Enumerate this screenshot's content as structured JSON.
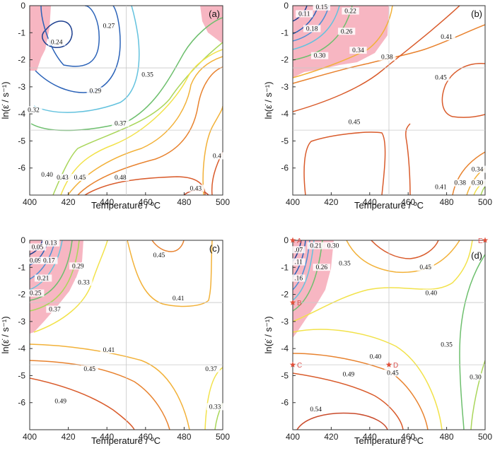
{
  "colors": {
    "instability": "#f7b6c2",
    "gridline": "#c8c8c8",
    "marker": "#e0503a",
    "levels": [
      "#1d3f8f",
      "#2a62b8",
      "#4a90d6",
      "#63c2de",
      "#6dbf6d",
      "#a9d65a",
      "#f2e24a",
      "#f2b138",
      "#e8822e",
      "#d95b2b",
      "#c94a2a"
    ]
  },
  "chart_data": [
    {
      "panel": "(a)",
      "type": "contour",
      "xlabel": "Temperature / ºC",
      "ylabel": "ln(ε̇ / s⁻¹)",
      "xlim": [
        400,
        500
      ],
      "ylim": [
        -7,
        0
      ],
      "x_ticks": [
        "400",
        "420",
        "440",
        "460",
        "480",
        "500"
      ],
      "y_ticks": [
        "0",
        "-1",
        "-2",
        "-3",
        "-4",
        "-5",
        "-6"
      ],
      "contour_labels": [
        {
          "text": "0.24",
          "x": 414,
          "y": -1.4
        },
        {
          "text": "0.27",
          "x": 441,
          "y": -0.8
        },
        {
          "text": "0.29",
          "x": 434,
          "y": -3.2
        },
        {
          "text": "0.32",
          "x": 402,
          "y": -3.9
        },
        {
          "text": "0.35",
          "x": 461,
          "y": -2.6
        },
        {
          "text": "0.37",
          "x": 447,
          "y": -4.4
        },
        {
          "text": "0.40",
          "x": 409,
          "y": -6.3
        },
        {
          "text": "0.43",
          "x": 417,
          "y": -6.4
        },
        {
          "text": "0.45",
          "x": 426,
          "y": -6.4
        },
        {
          "text": "0.48",
          "x": 447,
          "y": -6.4
        },
        {
          "text": "0.4",
          "x": 497,
          "y": -5.6
        },
        {
          "text": "0.43",
          "x": 486,
          "y": -6.8
        }
      ],
      "markers": []
    },
    {
      "panel": "(b)",
      "type": "contour",
      "xlabel": "Temperature / ºC",
      "ylabel": "ln(ε̇ / s⁻¹)",
      "xlim": [
        400,
        500
      ],
      "ylim": [
        -7,
        0
      ],
      "x_ticks": [
        "400",
        "420",
        "440",
        "460",
        "480",
        "500"
      ],
      "y_ticks": [
        "0",
        "-1",
        "-2",
        "-3",
        "-4",
        "-5",
        "-6"
      ],
      "contour_labels": [
        {
          "text": "0.11",
          "x": 406,
          "y": -0.35
        },
        {
          "text": "0.15",
          "x": 415,
          "y": -0.1
        },
        {
          "text": "0.22",
          "x": 430,
          "y": -0.25
        },
        {
          "text": "0.18",
          "x": 410,
          "y": -0.9
        },
        {
          "text": "0.26",
          "x": 428,
          "y": -1.0
        },
        {
          "text": "0.30",
          "x": 414,
          "y": -1.9
        },
        {
          "text": "0.34",
          "x": 434,
          "y": -1.7
        },
        {
          "text": "0.38",
          "x": 449,
          "y": -1.95
        },
        {
          "text": "0.41",
          "x": 480,
          "y": -1.2
        },
        {
          "text": "0.45",
          "x": 477,
          "y": -2.7
        },
        {
          "text": "0.45",
          "x": 432,
          "y": -4.35
        },
        {
          "text": "0.41",
          "x": 477,
          "y": -6.75
        },
        {
          "text": "0.38",
          "x": 487,
          "y": -6.6
        },
        {
          "text": "0.34",
          "x": 496,
          "y": -6.1
        },
        {
          "text": "0.30",
          "x": 496,
          "y": -6.6
        }
      ],
      "markers": []
    },
    {
      "panel": "(c)",
      "type": "contour",
      "xlabel": "Temperature / ºC",
      "ylabel": "ln(ε̇ / s⁻¹)",
      "xlim": [
        400,
        500
      ],
      "ylim": [
        -7,
        0
      ],
      "x_ticks": [
        "400",
        "420",
        "440",
        "460",
        "480",
        "500"
      ],
      "y_ticks": [
        "0",
        "-1",
        "-2",
        "-3",
        "-4",
        "-5",
        "-6"
      ],
      "contour_labels": [
        {
          "text": "0.05",
          "x": 404,
          "y": -0.3
        },
        {
          "text": "0.13",
          "x": 411,
          "y": -0.15
        },
        {
          "text": "0.09",
          "x": 403,
          "y": -0.8
        },
        {
          "text": "0.17",
          "x": 410,
          "y": -0.8
        },
        {
          "text": "0.29",
          "x": 425,
          "y": -1.0
        },
        {
          "text": "0.21",
          "x": 407,
          "y": -1.45
        },
        {
          "text": "0.33",
          "x": 428,
          "y": -1.6
        },
        {
          "text": "0.25",
          "x": 403,
          "y": -2.0
        },
        {
          "text": "0.37",
          "x": 413,
          "y": -2.6
        },
        {
          "text": "0.45",
          "x": 467,
          "y": -0.6
        },
        {
          "text": "0.41",
          "x": 477,
          "y": -2.2
        },
        {
          "text": "0.41",
          "x": 441,
          "y": -4.1
        },
        {
          "text": "0.45",
          "x": 431,
          "y": -4.8
        },
        {
          "text": "0.37",
          "x": 494,
          "y": -4.8
        },
        {
          "text": "0.49",
          "x": 416,
          "y": -6.0
        },
        {
          "text": "0.33",
          "x": 496,
          "y": -6.2
        }
      ],
      "markers": []
    },
    {
      "panel": "(d)",
      "type": "contour",
      "xlabel": "Temperature / ºC",
      "ylabel": "ln(ε̇ / s⁻¹)",
      "xlim": [
        400,
        500
      ],
      "ylim": [
        -7,
        0
      ],
      "x_ticks": [
        "400",
        "420",
        "440",
        "460",
        "480",
        "500"
      ],
      "y_ticks": [
        "0",
        "-1",
        "-2",
        "-3",
        "-4",
        "-5",
        "-6"
      ],
      "contour_labels": [
        {
          "text": ".07",
          "x": 403,
          "y": -0.4
        },
        {
          "text": "0.21",
          "x": 412,
          "y": -0.25
        },
        {
          "text": "0.30",
          "x": 421,
          "y": -0.25
        },
        {
          "text": ".11",
          "x": 403,
          "y": -0.85
        },
        {
          "text": "0.26",
          "x": 415,
          "y": -1.05
        },
        {
          "text": "0.35",
          "x": 427,
          "y": -0.9
        },
        {
          "text": ".16",
          "x": 403,
          "y": -1.45
        },
        {
          "text": "0.45",
          "x": 469,
          "y": -1.05
        },
        {
          "text": "0.40",
          "x": 472,
          "y": -2.0
        },
        {
          "text": "0.40",
          "x": 443,
          "y": -4.35
        },
        {
          "text": "0.35",
          "x": 480,
          "y": -3.9
        },
        {
          "text": "0.49",
          "x": 429,
          "y": -5.0
        },
        {
          "text": "0.45",
          "x": 452,
          "y": -4.95
        },
        {
          "text": "0.30",
          "x": 495,
          "y": -5.1
        },
        {
          "text": "0.54",
          "x": 412,
          "y": -6.3
        }
      ],
      "markers": [
        {
          "label": "A",
          "x": 400,
          "y": 0
        },
        {
          "label": "B",
          "x": 400,
          "y": -2.3
        },
        {
          "label": "C",
          "x": 400,
          "y": -4.6
        },
        {
          "label": "D",
          "x": 450,
          "y": -4.6
        },
        {
          "label": "E",
          "x": 500,
          "y": 0
        }
      ]
    }
  ]
}
